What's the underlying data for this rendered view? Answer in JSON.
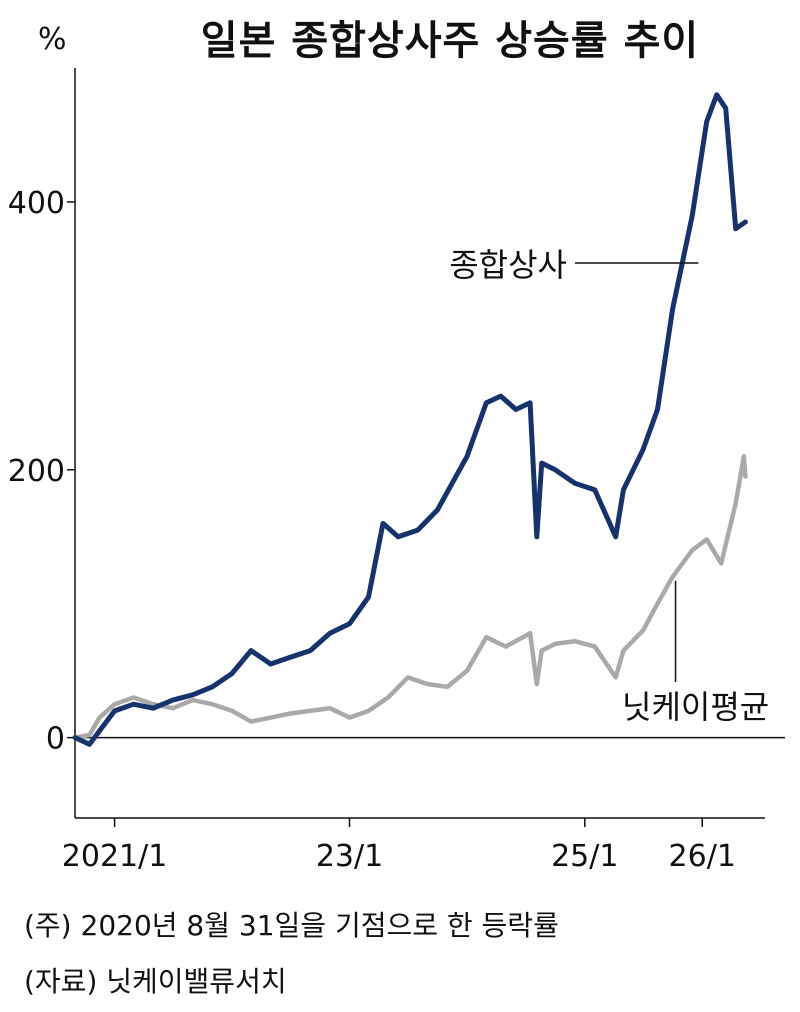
{
  "unit_label": "%",
  "title": "일본 종합상사주 상승률 추이",
  "notes": {
    "note1": "(주) 2020년 8월 31일을 기점으로 한 등락률",
    "note2": "(자료) 닛케이밸류서치"
  },
  "colors": {
    "sogo_shosha": "#16336b",
    "nikkei": "#a9a9a9",
    "axis": "#111111"
  },
  "chart_data": {
    "type": "line",
    "title": "일본 종합상사주 상승률 추이",
    "ylabel": "%",
    "ylim": [
      -60,
      500
    ],
    "yticks": [
      0,
      200,
      400
    ],
    "xlim": [
      "2020-08-31",
      "2026-07-15"
    ],
    "xticks": [
      {
        "date": "2021-01-01",
        "label": "2021/1"
      },
      {
        "date": "2023-01-01",
        "label": "23/1"
      },
      {
        "date": "2025-01-01",
        "label": "25/1"
      },
      {
        "date": "2026-01-01",
        "label": "26/1"
      }
    ],
    "series": [
      {
        "name": "종합상사",
        "points": [
          [
            "2020-08-31",
            0
          ],
          [
            "2020-10-15",
            -5
          ],
          [
            "2020-11-15",
            5
          ],
          [
            "2021-01-01",
            20
          ],
          [
            "2021-03-01",
            25
          ],
          [
            "2021-05-01",
            22
          ],
          [
            "2021-07-01",
            28
          ],
          [
            "2021-09-01",
            32
          ],
          [
            "2021-11-01",
            38
          ],
          [
            "2022-01-01",
            48
          ],
          [
            "2022-03-01",
            65
          ],
          [
            "2022-05-01",
            55
          ],
          [
            "2022-07-01",
            60
          ],
          [
            "2022-09-01",
            65
          ],
          [
            "2022-11-01",
            78
          ],
          [
            "2023-01-01",
            85
          ],
          [
            "2023-03-01",
            105
          ],
          [
            "2023-04-15",
            160
          ],
          [
            "2023-06-01",
            150
          ],
          [
            "2023-08-01",
            155
          ],
          [
            "2023-10-01",
            170
          ],
          [
            "2024-01-01",
            210
          ],
          [
            "2024-03-01",
            250
          ],
          [
            "2024-04-15",
            255
          ],
          [
            "2024-06-01",
            245
          ],
          [
            "2024-07-15",
            250
          ],
          [
            "2024-08-05",
            150
          ],
          [
            "2024-08-20",
            205
          ],
          [
            "2024-10-01",
            200
          ],
          [
            "2024-12-01",
            190
          ],
          [
            "2025-02-01",
            185
          ],
          [
            "2025-04-07",
            150
          ],
          [
            "2025-05-01",
            185
          ],
          [
            "2025-07-01",
            215
          ],
          [
            "2025-08-15",
            245
          ],
          [
            "2025-10-01",
            320
          ],
          [
            "2025-12-01",
            390
          ],
          [
            "2026-01-15",
            460
          ],
          [
            "2026-02-15",
            480
          ],
          [
            "2026-03-15",
            470
          ],
          [
            "2026-04-15",
            380
          ],
          [
            "2026-05-15",
            385
          ]
        ]
      },
      {
        "name": "닛케이평균",
        "points": [
          [
            "2020-08-31",
            0
          ],
          [
            "2020-10-15",
            2
          ],
          [
            "2020-11-15",
            15
          ],
          [
            "2021-01-01",
            25
          ],
          [
            "2021-03-01",
            30
          ],
          [
            "2021-05-01",
            25
          ],
          [
            "2021-07-01",
            22
          ],
          [
            "2021-09-01",
            28
          ],
          [
            "2021-11-01",
            25
          ],
          [
            "2022-01-01",
            20
          ],
          [
            "2022-03-01",
            12
          ],
          [
            "2022-05-01",
            15
          ],
          [
            "2022-07-01",
            18
          ],
          [
            "2022-09-01",
            20
          ],
          [
            "2022-11-01",
            22
          ],
          [
            "2023-01-01",
            15
          ],
          [
            "2023-03-01",
            20
          ],
          [
            "2023-05-01",
            30
          ],
          [
            "2023-07-01",
            45
          ],
          [
            "2023-09-01",
            40
          ],
          [
            "2023-11-01",
            38
          ],
          [
            "2024-01-01",
            50
          ],
          [
            "2024-03-01",
            75
          ],
          [
            "2024-05-01",
            68
          ],
          [
            "2024-07-15",
            78
          ],
          [
            "2024-08-05",
            40
          ],
          [
            "2024-08-20",
            65
          ],
          [
            "2024-10-01",
            70
          ],
          [
            "2024-12-01",
            72
          ],
          [
            "2025-02-01",
            68
          ],
          [
            "2025-04-07",
            45
          ],
          [
            "2025-05-01",
            65
          ],
          [
            "2025-07-01",
            80
          ],
          [
            "2025-08-15",
            100
          ],
          [
            "2025-10-01",
            120
          ],
          [
            "2025-12-01",
            140
          ],
          [
            "2026-01-15",
            148
          ],
          [
            "2026-03-01",
            130
          ],
          [
            "2026-04-15",
            175
          ],
          [
            "2026-05-10",
            210
          ],
          [
            "2026-05-15",
            195
          ]
        ]
      }
    ],
    "annotations": [
      "종합상사",
      "닛케이평균"
    ]
  }
}
